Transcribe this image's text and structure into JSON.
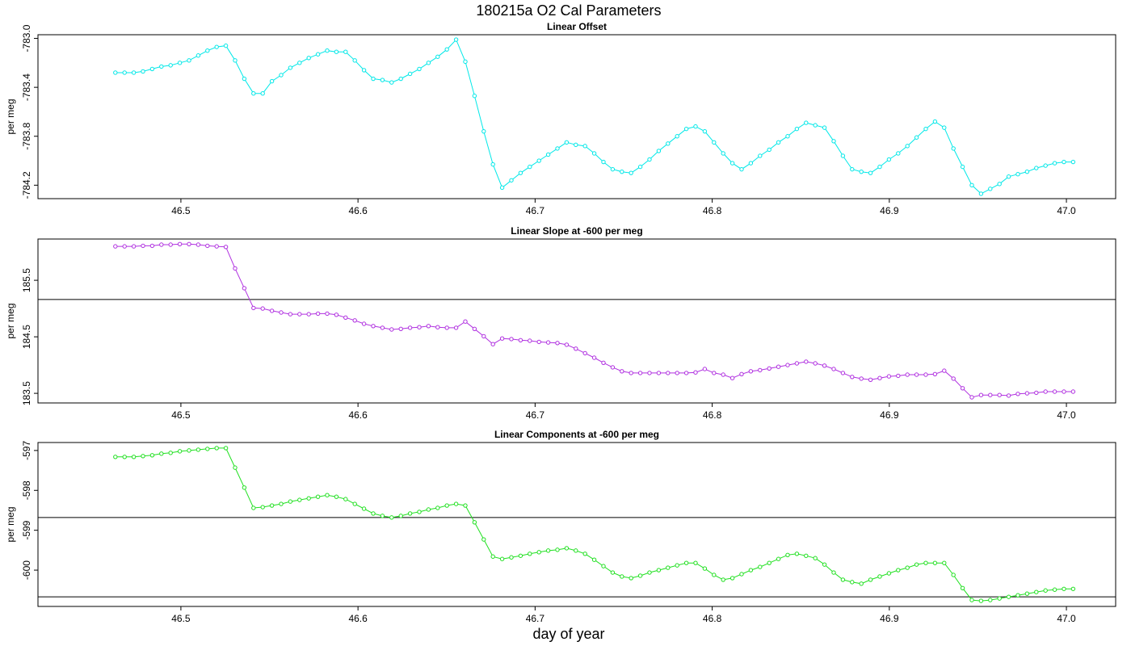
{
  "title": "180215a   O2 Cal Parameters",
  "xlabel": "day of year",
  "chart_data": [
    {
      "type": "line",
      "title": "Linear Offset",
      "ylabel": "per meg",
      "color": "#00e8e8",
      "x": [
        46.463,
        46.4682,
        46.4734,
        46.4786,
        46.4838,
        46.489,
        46.4942,
        46.4994,
        46.5046,
        46.5098,
        46.515,
        46.5202,
        46.5254,
        46.5306,
        46.5358,
        46.541,
        46.5462,
        46.5514,
        46.5566,
        46.5618,
        46.567,
        46.5722,
        46.5774,
        46.5826,
        46.5878,
        46.593,
        46.5982,
        46.6034,
        46.6086,
        46.6138,
        46.619,
        46.6242,
        46.6294,
        46.6346,
        46.6398,
        46.645,
        46.6502,
        46.6554,
        46.6606,
        46.6658,
        46.671,
        46.6762,
        46.6814,
        46.6866,
        46.6918,
        46.697,
        46.7022,
        46.7074,
        46.7126,
        46.7178,
        46.723,
        46.7282,
        46.7334,
        46.7386,
        46.7438,
        46.749,
        46.7542,
        46.7594,
        46.7646,
        46.7698,
        46.775,
        46.7802,
        46.7854,
        46.7906,
        46.7958,
        46.801,
        46.8062,
        46.8114,
        46.8166,
        46.8218,
        46.827,
        46.8322,
        46.8374,
        46.8426,
        46.8478,
        46.853,
        46.8582,
        46.8634,
        46.8686,
        46.8738,
        46.879,
        46.8842,
        46.8894,
        46.8946,
        46.8998,
        46.905,
        46.9102,
        46.9154,
        46.9206,
        46.9258,
        46.931,
        46.9362,
        46.9414,
        46.9466,
        46.9518,
        46.957,
        46.9622,
        46.9674,
        46.9726,
        46.9778,
        46.983,
        46.9882,
        46.9934,
        46.9986,
        47.0038
      ],
      "values": [
        -783.28,
        -783.28,
        -783.28,
        -783.27,
        -783.25,
        -783.23,
        -783.22,
        -783.2,
        -783.18,
        -783.14,
        -783.1,
        -783.07,
        -783.06,
        -783.18,
        -783.33,
        -783.45,
        -783.45,
        -783.35,
        -783.3,
        -783.24,
        -783.2,
        -783.16,
        -783.13,
        -783.1,
        -783.11,
        -783.11,
        -783.18,
        -783.26,
        -783.33,
        -783.34,
        -783.36,
        -783.33,
        -783.29,
        -783.25,
        -783.2,
        -783.15,
        -783.09,
        -783.01,
        -783.19,
        -783.47,
        -783.76,
        -784.03,
        -784.22,
        -784.16,
        -784.1,
        -784.05,
        -784,
        -783.95,
        -783.9,
        -783.85,
        -783.87,
        -783.88,
        -783.94,
        -784.01,
        -784.07,
        -784.09,
        -784.1,
        -784.05,
        -783.99,
        -783.92,
        -783.86,
        -783.8,
        -783.74,
        -783.72,
        -783.76,
        -783.85,
        -783.94,
        -784.02,
        -784.07,
        -784.02,
        -783.96,
        -783.91,
        -783.85,
        -783.8,
        -783.74,
        -783.69,
        -783.71,
        -783.73,
        -783.84,
        -783.96,
        -784.07,
        -784.09,
        -784.1,
        -784.05,
        -783.99,
        -783.94,
        -783.88,
        -783.81,
        -783.74,
        -783.68,
        -783.73,
        -783.9,
        -784.05,
        -784.2,
        -784.27,
        -784.23,
        -784.19,
        -784.13,
        -784.11,
        -784.09,
        -784.06,
        -784.04,
        -784.02,
        -784.01,
        -784.01
      ],
      "xlim": [
        46.4193,
        47.0278
      ],
      "xticks": [
        46.5,
        46.6,
        46.7,
        46.8,
        46.9,
        {
          "value": 47,
          "label": "47.0"
        }
      ],
      "ylim": [
        -784.31,
        -782.97
      ],
      "yticks": [
        {
          "value": -783,
          "label": "-783.0"
        },
        -783.4,
        -783.8,
        -784.2
      ],
      "hlines": []
    },
    {
      "type": "line",
      "title": "Linear Slope at -600 per meg",
      "ylabel": "per meg",
      "color": "#b030e0",
      "x": [
        46.463,
        46.4682,
        46.4734,
        46.4786,
        46.4838,
        46.489,
        46.4942,
        46.4994,
        46.5046,
        46.5098,
        46.515,
        46.5202,
        46.5254,
        46.5306,
        46.5358,
        46.541,
        46.5462,
        46.5514,
        46.5566,
        46.5618,
        46.567,
        46.5722,
        46.5774,
        46.5826,
        46.5878,
        46.593,
        46.5982,
        46.6034,
        46.6086,
        46.6138,
        46.619,
        46.6242,
        46.6294,
        46.6346,
        46.6398,
        46.645,
        46.6502,
        46.6554,
        46.6606,
        46.6658,
        46.671,
        46.6762,
        46.6814,
        46.6866,
        46.6918,
        46.697,
        46.7022,
        46.7074,
        46.7126,
        46.7178,
        46.723,
        46.7282,
        46.7334,
        46.7386,
        46.7438,
        46.749,
        46.7542,
        46.7594,
        46.7646,
        46.7698,
        46.775,
        46.7802,
        46.7854,
        46.7906,
        46.7958,
        46.801,
        46.8062,
        46.8114,
        46.8166,
        46.8218,
        46.827,
        46.8322,
        46.8374,
        46.8426,
        46.8478,
        46.853,
        46.8582,
        46.8634,
        46.8686,
        46.8738,
        46.879,
        46.8842,
        46.8894,
        46.8946,
        46.8998,
        46.905,
        46.9102,
        46.9154,
        46.9206,
        46.9258,
        46.931,
        46.9362,
        46.9414,
        46.9466,
        46.9518,
        46.957,
        46.9622,
        46.9674,
        46.9726,
        46.9778,
        46.983,
        46.9882,
        46.9934,
        46.9986,
        47.0038
      ],
      "values": [
        186.1,
        186.1,
        186.1,
        186.11,
        186.11,
        186.13,
        186.13,
        186.14,
        186.14,
        186.13,
        186.11,
        186.1,
        186.09,
        185.71,
        185.36,
        185.01,
        185,
        184.96,
        184.93,
        184.9,
        184.9,
        184.9,
        184.91,
        184.91,
        184.89,
        184.84,
        184.79,
        184.73,
        184.69,
        184.66,
        184.63,
        184.64,
        184.66,
        184.67,
        184.69,
        184.67,
        184.66,
        184.66,
        184.77,
        184.64,
        184.51,
        184.37,
        184.47,
        184.46,
        184.44,
        184.43,
        184.41,
        184.4,
        184.39,
        184.36,
        184.29,
        184.21,
        184.13,
        184.04,
        183.96,
        183.89,
        183.86,
        183.86,
        183.86,
        183.86,
        183.86,
        183.86,
        183.86,
        183.87,
        183.93,
        183.86,
        183.83,
        183.77,
        183.84,
        183.89,
        183.91,
        183.94,
        183.97,
        184,
        184.03,
        184.06,
        184.03,
        183.99,
        183.93,
        183.86,
        183.79,
        183.76,
        183.74,
        183.77,
        183.8,
        183.81,
        183.83,
        183.83,
        183.83,
        183.84,
        183.9,
        183.76,
        183.59,
        183.43,
        183.47,
        183.47,
        183.47,
        183.46,
        183.49,
        183.5,
        183.51,
        183.53,
        183.53,
        183.53,
        183.53
      ],
      "xlim": [
        46.4193,
        47.0278
      ],
      "xticks": [
        46.5,
        46.6,
        46.7,
        46.8,
        46.9,
        {
          "value": 47,
          "label": "47.0"
        }
      ],
      "ylim": [
        183.33,
        186.23
      ],
      "yticks": [
        183.5,
        184.5,
        185.5
      ],
      "hlines": [
        185.16
      ]
    },
    {
      "type": "line",
      "title": "Linear Components at -600 per meg",
      "ylabel": "per meg",
      "color": "#20e020",
      "x": [
        46.463,
        46.4682,
        46.4734,
        46.4786,
        46.4838,
        46.489,
        46.4942,
        46.4994,
        46.5046,
        46.5098,
        46.515,
        46.5202,
        46.5254,
        46.5306,
        46.5358,
        46.541,
        46.5462,
        46.5514,
        46.5566,
        46.5618,
        46.567,
        46.5722,
        46.5774,
        46.5826,
        46.5878,
        46.593,
        46.5982,
        46.6034,
        46.6086,
        46.6138,
        46.619,
        46.6242,
        46.6294,
        46.6346,
        46.6398,
        46.645,
        46.6502,
        46.6554,
        46.6606,
        46.6658,
        46.671,
        46.6762,
        46.6814,
        46.6866,
        46.6918,
        46.697,
        46.7022,
        46.7074,
        46.7126,
        46.7178,
        46.723,
        46.7282,
        46.7334,
        46.7386,
        46.7438,
        46.749,
        46.7542,
        46.7594,
        46.7646,
        46.7698,
        46.775,
        46.7802,
        46.7854,
        46.7906,
        46.7958,
        46.801,
        46.8062,
        46.8114,
        46.8166,
        46.8218,
        46.827,
        46.8322,
        46.8374,
        46.8426,
        46.8478,
        46.853,
        46.8582,
        46.8634,
        46.8686,
        46.8738,
        46.879,
        46.8842,
        46.8894,
        46.8946,
        46.8998,
        46.905,
        46.9102,
        46.9154,
        46.9206,
        46.9258,
        46.931,
        46.9362,
        46.9414,
        46.9466,
        46.9518,
        46.957,
        46.9622,
        46.9674,
        46.9726,
        46.9778,
        46.983,
        46.9882,
        46.9934,
        46.9986,
        47.0038
      ],
      "values": [
        -597.16,
        -597.16,
        -597.16,
        -597.14,
        -597.12,
        -597.08,
        -597.06,
        -597.02,
        -597,
        -596.98,
        -596.96,
        -596.94,
        -596.94,
        -597.43,
        -597.93,
        -598.44,
        -598.42,
        -598.38,
        -598.34,
        -598.28,
        -598.24,
        -598.2,
        -598.16,
        -598.12,
        -598.16,
        -598.22,
        -598.34,
        -598.46,
        -598.58,
        -598.64,
        -598.68,
        -598.64,
        -598.58,
        -598.54,
        -598.48,
        -598.44,
        -598.38,
        -598.34,
        -598.38,
        -598.8,
        -599.23,
        -599.66,
        -599.72,
        -599.68,
        -599.64,
        -599.59,
        -599.55,
        -599.51,
        -599.49,
        -599.45,
        -599.51,
        -599.59,
        -599.74,
        -599.9,
        -600.06,
        -600.16,
        -600.2,
        -600.14,
        -600.06,
        -600,
        -599.94,
        -599.88,
        -599.82,
        -599.82,
        -599.96,
        -600.12,
        -600.24,
        -600.2,
        -600.1,
        -600,
        -599.92,
        -599.82,
        -599.72,
        -599.62,
        -599.59,
        -599.64,
        -599.7,
        -599.86,
        -600.06,
        -600.24,
        -600.3,
        -600.34,
        -600.24,
        -600.16,
        -600.08,
        -600,
        -599.94,
        -599.86,
        -599.82,
        -599.82,
        -599.82,
        -600.12,
        -600.45,
        -600.75,
        -600.77,
        -600.75,
        -600.71,
        -600.67,
        -600.63,
        -600.59,
        -600.55,
        -600.51,
        -600.49,
        -600.47,
        -600.47
      ],
      "xlim": [
        46.4193,
        47.0278
      ],
      "xticks": [
        46.5,
        46.6,
        46.7,
        46.8,
        46.9,
        {
          "value": 47,
          "label": "47.0"
        }
      ],
      "ylim": [
        -600.91,
        -596.8
      ],
      "yticks": [
        -597,
        -598,
        -599,
        -600
      ],
      "hlines": [
        -598.68,
        -600.67
      ]
    }
  ]
}
